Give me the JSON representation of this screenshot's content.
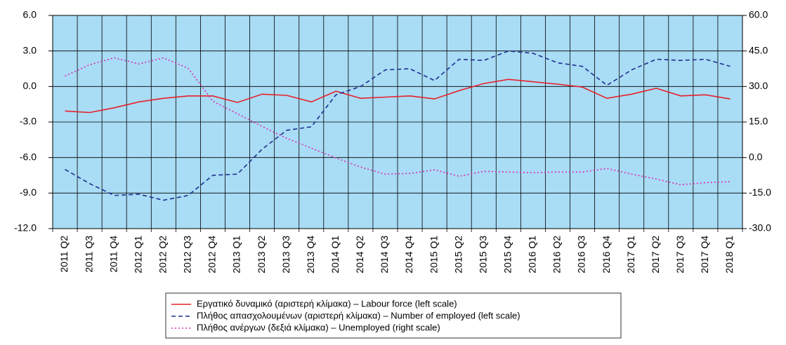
{
  "chart_data": {
    "type": "line",
    "categories": [
      "2011 Q2",
      "2011 Q3",
      "2011 Q4",
      "2012 Q1",
      "2012 Q2",
      "2012 Q3",
      "2012 Q4",
      "2013 Q1",
      "2013 Q2",
      "2013 Q3",
      "2013 Q4",
      "2014 Q1",
      "2014 Q2",
      "2014 Q3",
      "2014 Q4",
      "2015 Q1",
      "2015 Q2",
      "2015 Q3",
      "2015 Q4",
      "2016 Q1",
      "2016 Q2",
      "2016 Q3",
      "2016 Q4",
      "2017 Q1",
      "2017 Q2",
      "2017 Q3",
      "2017 Q4",
      "2018 Q1"
    ],
    "ylim": [
      -12,
      6
    ],
    "yticks": [
      {
        "value": -12,
        "label": "-12.0"
      },
      {
        "value": -9,
        "label": "-9.0"
      },
      {
        "value": -6,
        "label": "-6.0"
      },
      {
        "value": -3,
        "label": "-3.0"
      },
      {
        "value": 0,
        "label": "0.0"
      },
      {
        "value": 3,
        "label": "3.0"
      },
      {
        "value": 6,
        "label": "6.0"
      }
    ],
    "y2lim": [
      -30,
      60
    ],
    "y2ticks": [
      {
        "value": -30,
        "label": "-30.0"
      },
      {
        "value": -15,
        "label": "-15.0"
      },
      {
        "value": 0,
        "label": "0.0"
      },
      {
        "value": 15,
        "label": "15.0"
      },
      {
        "value": 30,
        "label": "30.0"
      },
      {
        "value": 45,
        "label": "45.0"
      },
      {
        "value": 60,
        "label": "60.0"
      }
    ],
    "grid": true,
    "background": "#a9dcf5",
    "series": [
      {
        "name": "Εργατικό δυναμικό (αριστερή κλίμακα) – Labour force (left scale)",
        "color": "#e8202a",
        "dash": "solid",
        "values": [
          -2.07,
          -2.2,
          -1.8,
          -1.3,
          -1.0,
          -0.8,
          -0.8,
          -1.35,
          -0.65,
          -0.75,
          -1.3,
          -0.4,
          -1.0,
          -0.9,
          -0.8,
          -1.05,
          -0.35,
          0.25,
          0.6,
          0.4,
          0.2,
          -0.05,
          -1.0,
          -0.65,
          -0.15,
          -0.8,
          -0.7,
          -1.05
        ]
      },
      {
        "name": "Πλήθος απασχολουμένων (αριστερή κλίμακα) – Number of employed (left scale)",
        "color": "#1f2f8f",
        "dash": "dashed",
        "values": [
          -7.0,
          -8.2,
          -9.2,
          -9.1,
          -9.6,
          -9.2,
          -7.5,
          -7.4,
          -5.3,
          -3.7,
          -3.4,
          -0.7,
          0.0,
          1.4,
          1.5,
          0.5,
          2.3,
          2.2,
          3.0,
          2.8,
          2.0,
          1.7,
          0.1,
          1.4,
          2.3,
          2.2,
          2.3,
          1.7
        ]
      },
      {
        "name": "Πλήθος ανέργων (δεξιά κλίμακα) – Unemployed  (right scale)",
        "color": "#d62fb0",
        "dash": "dotted",
        "axis": "y2",
        "values": [
          34.4,
          39.2,
          42.1,
          39.5,
          42.1,
          37.7,
          23.8,
          18.5,
          13.1,
          8.1,
          4.0,
          -0.2,
          -4.0,
          -7.0,
          -6.7,
          -5.2,
          -7.9,
          -5.8,
          -6.1,
          -6.4,
          -6.1,
          -6.1,
          -4.6,
          -7.0,
          -9.1,
          -11.5,
          -10.6,
          -10.2
        ]
      }
    ]
  }
}
